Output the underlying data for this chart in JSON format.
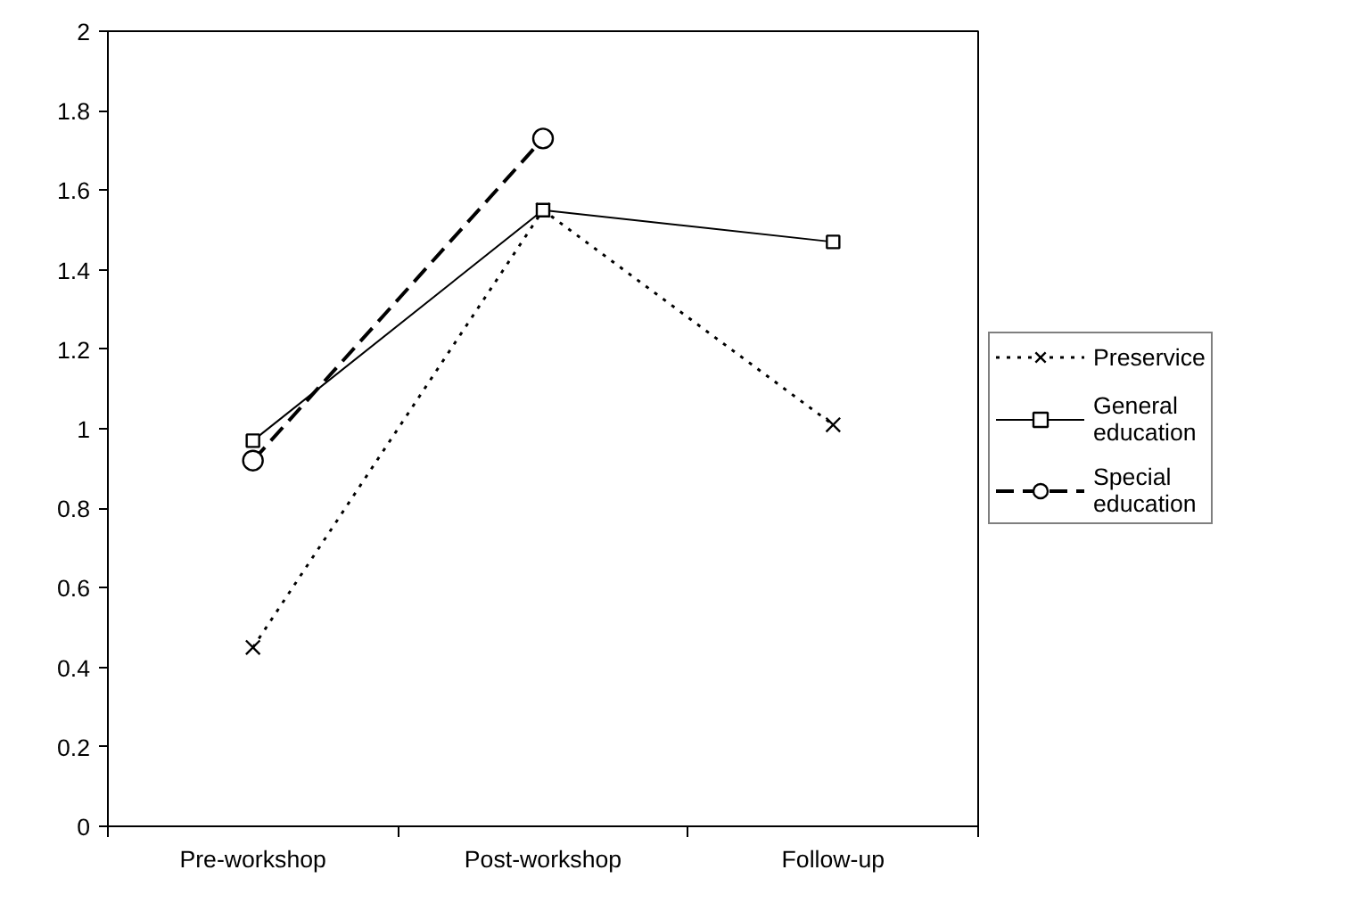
{
  "chart_data": {
    "type": "line",
    "categories": [
      "Pre-workshop",
      "Post-workshop",
      "Follow-up"
    ],
    "series": [
      {
        "name": "Preservice",
        "color": "#000000",
        "values": [
          0.45,
          1.55,
          1.01
        ],
        "marker": "cross",
        "line_style": "dotted"
      },
      {
        "name": "General education",
        "color": "#000000",
        "values": [
          0.97,
          1.55,
          1.47
        ],
        "marker": "square",
        "line_style": "solid"
      },
      {
        "name": "Special education",
        "color": "#000000",
        "values": [
          0.92,
          1.73,
          null
        ],
        "marker": "circle",
        "line_style": "dashed"
      }
    ],
    "ylim": [
      0,
      2
    ],
    "yticks": [
      0,
      0.2,
      0.4,
      0.6,
      0.8,
      1,
      1.2,
      1.4,
      1.6,
      1.8,
      2
    ],
    "grid": false,
    "legend": "right"
  }
}
